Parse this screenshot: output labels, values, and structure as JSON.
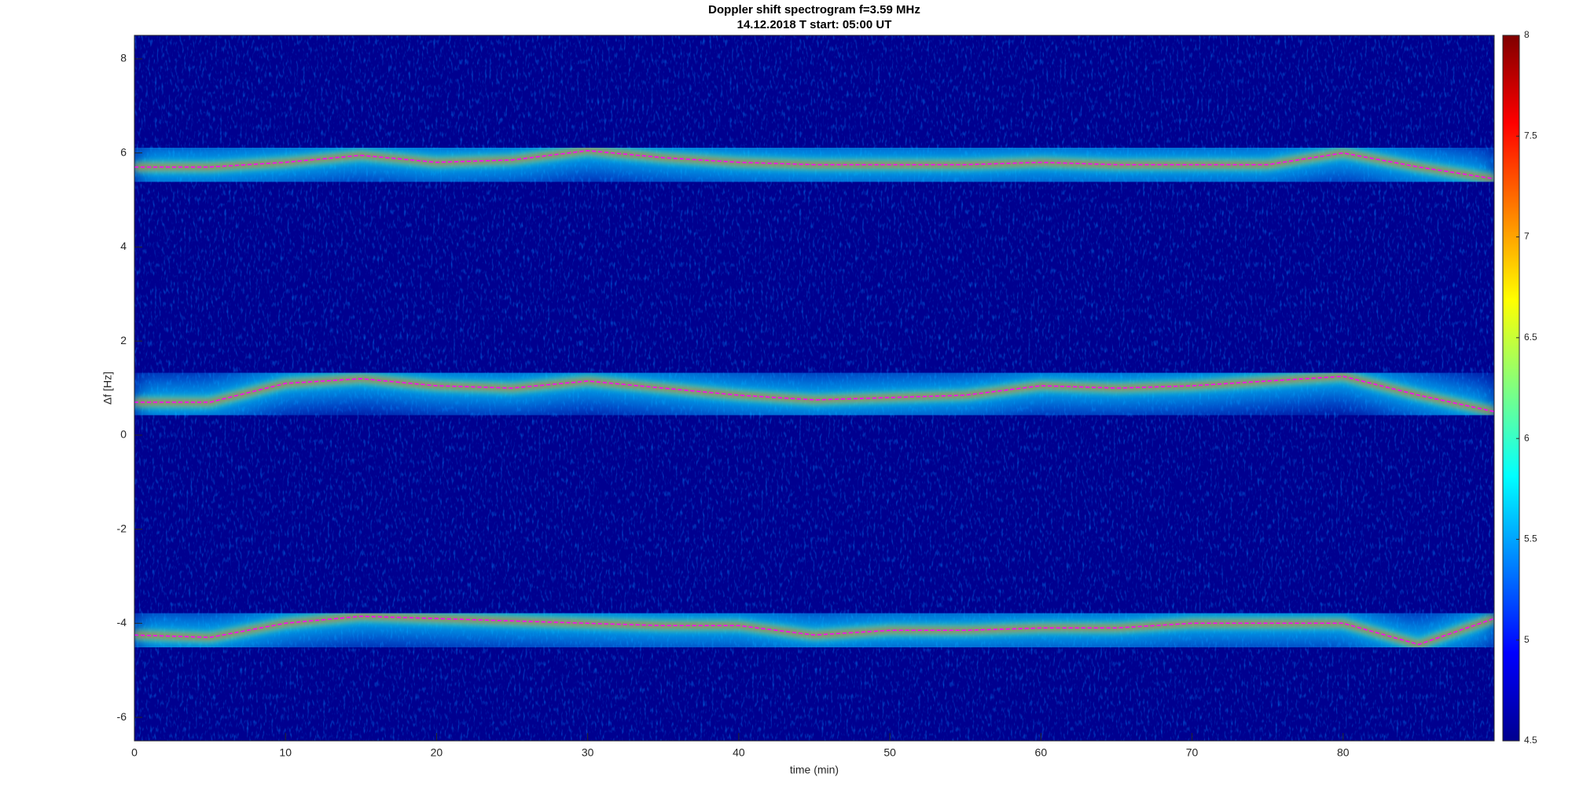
{
  "chart_data": {
    "type": "spectrogram",
    "title": "Doppler shift spectrogram f=3.59 MHz",
    "subtitle": "14.12.2018   T start: 05:00 UT",
    "x_label": "time (min)",
    "y_label": "Δf [Hz]",
    "xlim": [
      0,
      90
    ],
    "xticks": [
      0,
      10,
      20,
      30,
      40,
      50,
      60,
      70,
      80
    ],
    "ylim": [
      -6.5,
      8.5
    ],
    "yticks": [
      -6,
      -4,
      -2,
      0,
      2,
      4,
      6,
      8
    ],
    "background_color": "#00008f",
    "colorbar_lim": [
      4.5,
      8
    ],
    "colorbar_ticks": [
      4.5,
      5,
      5.5,
      6,
      6.5,
      7,
      7.5,
      8
    ],
    "colormap": [
      "#00008f",
      "#0000ff",
      "#0080ff",
      "#00ffff",
      "#80ff80",
      "#ffff00",
      "#ff8000",
      "#ff0000",
      "#800000"
    ],
    "x": [
      0,
      5,
      10,
      15,
      20,
      25,
      30,
      35,
      40,
      45,
      50,
      55,
      60,
      65,
      70,
      75,
      80,
      85,
      90
    ],
    "traces": [
      {
        "color": "#ff00ff",
        "values": [
          5.7,
          5.7,
          5.8,
          5.95,
          5.8,
          5.85,
          6.05,
          5.9,
          5.8,
          5.75,
          5.75,
          5.75,
          5.8,
          5.75,
          5.75,
          5.75,
          6.0,
          5.7,
          5.45
        ]
      },
      {
        "color": "#ff00ff",
        "values": [
          0.7,
          0.7,
          1.1,
          1.2,
          1.05,
          1.0,
          1.15,
          1.0,
          0.85,
          0.75,
          0.8,
          0.85,
          1.05,
          1.0,
          1.05,
          1.15,
          1.25,
          0.85,
          0.5
        ]
      },
      {
        "color": "#ff00ff",
        "values": [
          -4.25,
          -4.3,
          -4.0,
          -3.85,
          -3.9,
          -3.95,
          -4.0,
          -4.05,
          -4.05,
          -4.25,
          -4.15,
          -4.15,
          -4.1,
          -4.1,
          -4.0,
          -4.0,
          -4.0,
          -4.45,
          -3.9
        ]
      }
    ]
  }
}
